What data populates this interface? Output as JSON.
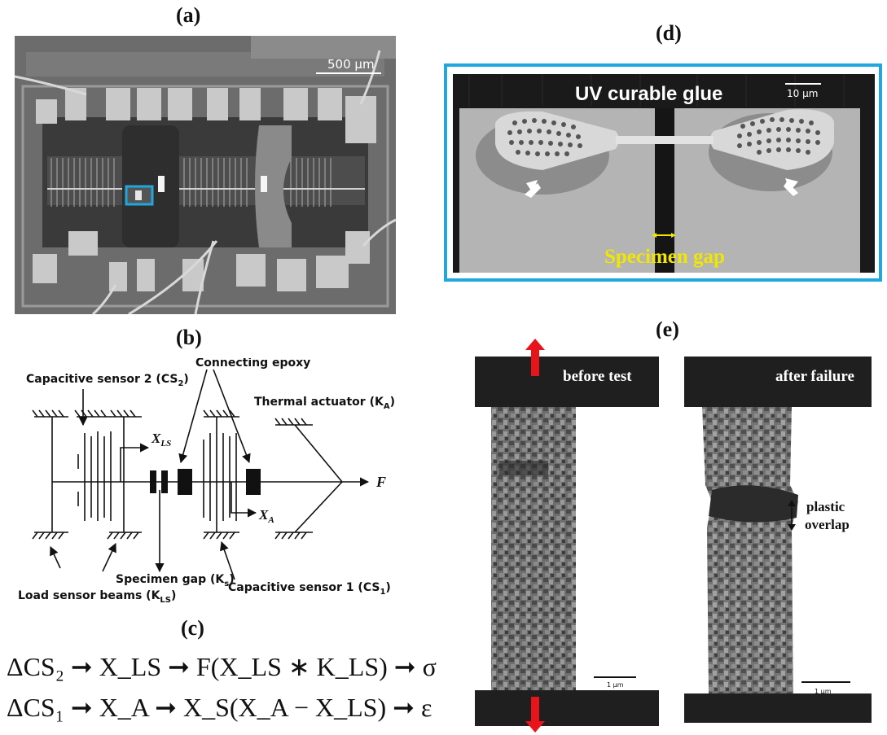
{
  "panels": {
    "a": {
      "label": "(a)",
      "scale_bar": "500 μm"
    },
    "b": {
      "label": "(b)",
      "annotations": {
        "cs2": "Capacitive sensor 2 (CS",
        "cs2_sub": "2",
        "cs2_close": ")",
        "epoxy": "Connecting epoxy",
        "actuator": "Thermal actuator (K",
        "actuator_sub": "A",
        "actuator_close": ")",
        "xls": "X",
        "xls_sub": "LS",
        "xa": "X",
        "xa_sub": "A",
        "force": "F",
        "gap": "Specimen gap (K",
        "gap_sub": "s",
        "gap_close": ")",
        "beams": "Load sensor beams (K",
        "beams_sub": "LS",
        "beams_close": ")",
        "cs1": "Capacitive sensor 1 (CS",
        "cs1_sub": "1",
        "cs1_close": ")"
      }
    },
    "c": {
      "label": "(c)",
      "eq1": "ΔCS₂ ➞ X_LS ➞ F(X_LS ∗ K_LS) ➞ σ",
      "eq2": "ΔCS₁ ➞ X_A ➞ X_S(X_A − X_LS) ➞ ε"
    },
    "d": {
      "label": "(d)",
      "title": "UV curable glue",
      "scale_bar": "10 μm",
      "gap_label": "Specimen gap"
    },
    "e": {
      "label": "(e)",
      "left_caption": "before test",
      "right_caption": "after failure",
      "overlap_label_1": "plastic",
      "overlap_label_2": "overlap",
      "left_scale": "1 μm",
      "right_scale": "1 μm"
    }
  },
  "colors": {
    "highlight_blue": "#1fa8e0",
    "arrow_red": "#e8141a",
    "gap_yellow": "#f2e600"
  }
}
